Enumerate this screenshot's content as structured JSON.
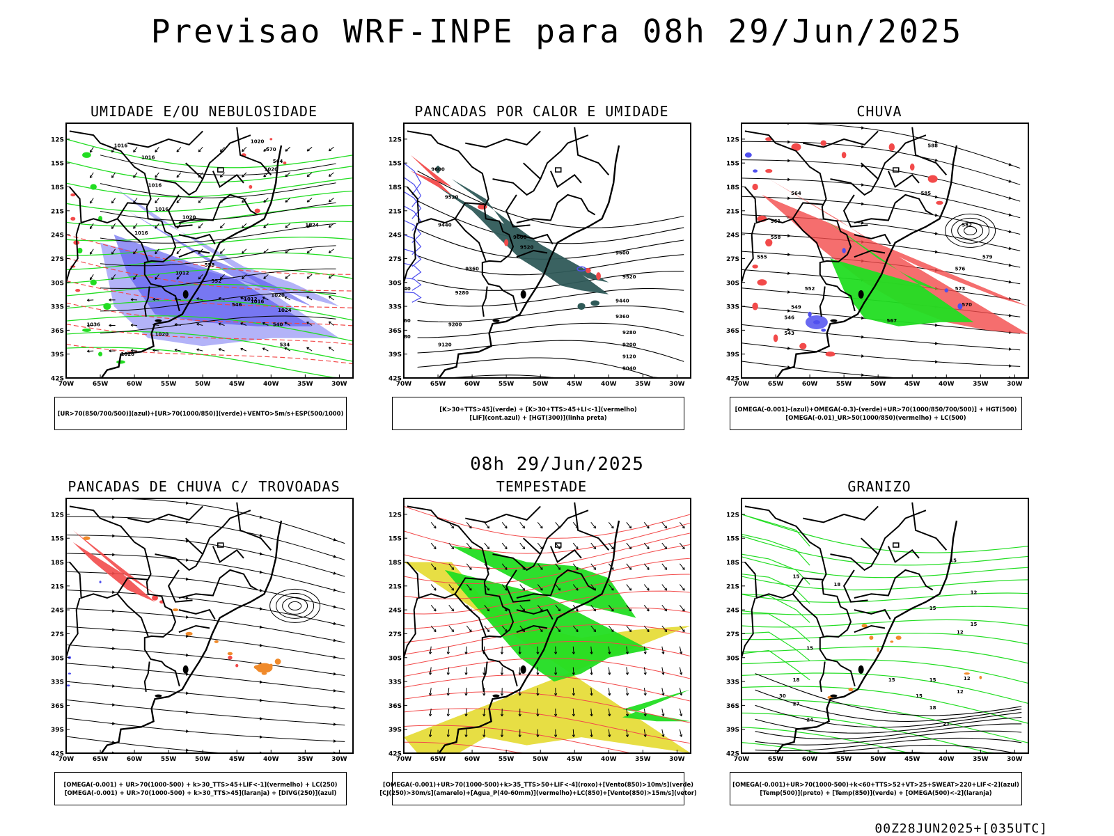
{
  "page": {
    "title": "Previsao WRF-INPE  para 08h 29/Jun/2025",
    "mid_title": "08h 29/Jun/2025",
    "footer": "00Z28JUN2025+[035UTC]"
  },
  "axes": {
    "lat_labels": [
      "12S",
      "15S",
      "18S",
      "21S",
      "24S",
      "27S",
      "30S",
      "33S",
      "36S",
      "39S",
      "42S"
    ],
    "lon_labels": [
      "70W",
      "65W",
      "60W",
      "55W",
      "50W",
      "45W",
      "40W",
      "35W",
      "30W"
    ]
  },
  "colors": {
    "blue": "#4f4fee",
    "lightblue": "#9a9af5",
    "green": "#22dd22",
    "red": "#f24a4a",
    "orange": "#f08a2a",
    "teal": "#2f5a58",
    "yellow": "#e6dc3a",
    "black": "#000000"
  },
  "panels": [
    {
      "title": "UMIDADE E/OU NEBULOSIDADE",
      "legend": [
        "[UR>70(850/700/500)](azul)+[UR>70(1000/850)](verde)+VENTO>5m/s+ESP(500/1000)"
      ],
      "contour_labels": [
        "1016",
        "1016",
        "1020",
        "1020",
        "1016",
        "1016",
        "1020",
        "1024",
        "1016",
        "1012",
        "1012",
        "1016",
        "1020",
        "1024",
        "1036",
        "1020",
        "1028",
        "570",
        "564",
        "558",
        "552",
        "546",
        "540",
        "534"
      ]
    },
    {
      "title": "PANCADAS POR CALOR E UMIDADE",
      "legend": [
        "[K>30+TTS>45](verde) + [K>30+TTS>45+LI<-1](vermelho)",
        "[LIF](cont.azul) + [HGT(300)](linha preta)"
      ],
      "contour_labels": [
        "9600",
        "9520",
        "9440",
        "9360",
        "9280",
        "9200",
        "9120",
        "9040",
        "8960",
        "8880",
        "9600",
        "9520",
        "9440",
        "9360",
        "9280",
        "9200",
        "9120",
        "9040",
        "9520",
        "9600"
      ]
    },
    {
      "title": "CHUVA",
      "legend": [
        "[OMEGA(-0.001)-(azul)+OMEGA(-0.3)-(verde)+UR>70(1000/850/700/500)] + HGT(500)",
        "[OMEGA(-0.01)_UR>50(1000/850)(vermelho) + LC(500)"
      ],
      "contour_labels": [
        "588",
        "585",
        "582",
        "579",
        "576",
        "573",
        "570",
        "567",
        "564",
        "561",
        "558",
        "555",
        "552",
        "549",
        "546",
        "543"
      ]
    },
    {
      "title": "PANCADAS DE CHUVA C/ TROVOADAS",
      "legend": [
        "[OMEGA(-0.001) + UR>70(1000-500) + k>30_TTS>45+LIF<-1](vermelho) + LC(250)",
        "[OMEGA(-0.001) + UR>70(1000-500) + k>30_TTS>45](laranja) + [DIVG(250)](azul)"
      ],
      "contour_labels": []
    },
    {
      "title": "TEMPESTADE",
      "legend": [
        "[OMEGA(-0.001)+UR>70(1000-500)+k>35_TTS>50+LIF<-4](roxo)+[Vento(850)>10m/s](verde)",
        "[CJ(250)>30m/s](amarelo)+[Agua_P(40-60mm)](vermelho)+LC(850)+[Vento(850)>15m/s](vetor)"
      ],
      "contour_labels": []
    },
    {
      "title": "GRANIZO",
      "legend": [
        "[OMEGA(-0.001)+UR>70(1000-500)+k<60+TTS>52+VT>25+SWEAT>220+LIF<-2](azul)",
        "[Temp(500)](preto) + [Temp(850)](verde) + [OMEGA(500)<-2](laranja)"
      ],
      "contour_labels": [
        "15",
        "18",
        "15",
        "12",
        "15",
        "12",
        "15",
        "18",
        "15",
        "15",
        "12",
        "15",
        "18",
        "21",
        "24",
        "27",
        "30",
        "15",
        "12"
      ]
    }
  ]
}
